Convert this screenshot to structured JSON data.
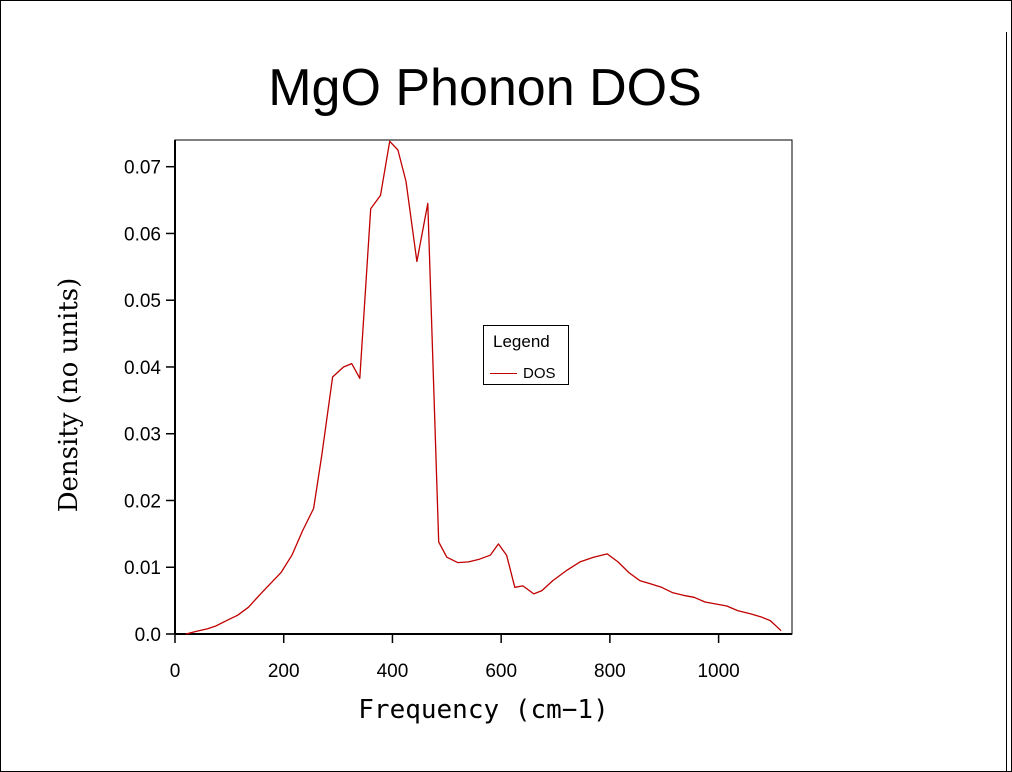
{
  "chart_data": {
    "type": "line",
    "title": "MgO Phonon DOS",
    "xlabel": "Frequency (cm−1)",
    "ylabel": "Density (no units)",
    "xlim": [
      0,
      1135
    ],
    "ylim": [
      0,
      0.074
    ],
    "x_ticks": [
      0,
      200,
      400,
      600,
      800,
      1000
    ],
    "x_tick_labels": [
      "0",
      "200",
      "400",
      "600",
      "800",
      "1000"
    ],
    "y_ticks": [
      0,
      0.01,
      0.02,
      0.03,
      0.04,
      0.05,
      0.06,
      0.07
    ],
    "y_tick_labels": [
      "0.0",
      "0.01",
      "0.02",
      "0.03",
      "0.04",
      "0.05",
      "0.06",
      "0.07"
    ],
    "grid": false,
    "legend": {
      "title": "Legend",
      "placement": "center-right"
    },
    "series": [
      {
        "name": "DOS",
        "color": "#c00000",
        "x": [
          20,
          40,
          60,
          75,
          95,
          115,
          135,
          155,
          175,
          195,
          215,
          235,
          255,
          270,
          290,
          310,
          325,
          340,
          360,
          378,
          395,
          410,
          425,
          445,
          465,
          485,
          500,
          520,
          540,
          560,
          580,
          595,
          610,
          625,
          640,
          660,
          675,
          695,
          720,
          745,
          770,
          795,
          815,
          835,
          855,
          875,
          895,
          915,
          935,
          955,
          975,
          995,
          1015,
          1035,
          1060,
          1080,
          1095,
          1115
        ],
        "y": [
          0.0,
          0.0004,
          0.0008,
          0.0012,
          0.002,
          0.0028,
          0.004,
          0.0058,
          0.0075,
          0.0092,
          0.0118,
          0.0155,
          0.0188,
          0.0268,
          0.0385,
          0.04,
          0.0405,
          0.0383,
          0.0637,
          0.0657,
          0.0738,
          0.0725,
          0.0678,
          0.0558,
          0.0645,
          0.0138,
          0.0115,
          0.0107,
          0.0108,
          0.0112,
          0.0118,
          0.0135,
          0.0118,
          0.007,
          0.0072,
          0.006,
          0.0065,
          0.008,
          0.0095,
          0.0108,
          0.0115,
          0.012,
          0.0108,
          0.0092,
          0.008,
          0.0075,
          0.007,
          0.0062,
          0.0058,
          0.0055,
          0.0048,
          0.0045,
          0.0042,
          0.0035,
          0.003,
          0.0025,
          0.002,
          0.0005
        ]
      }
    ]
  }
}
